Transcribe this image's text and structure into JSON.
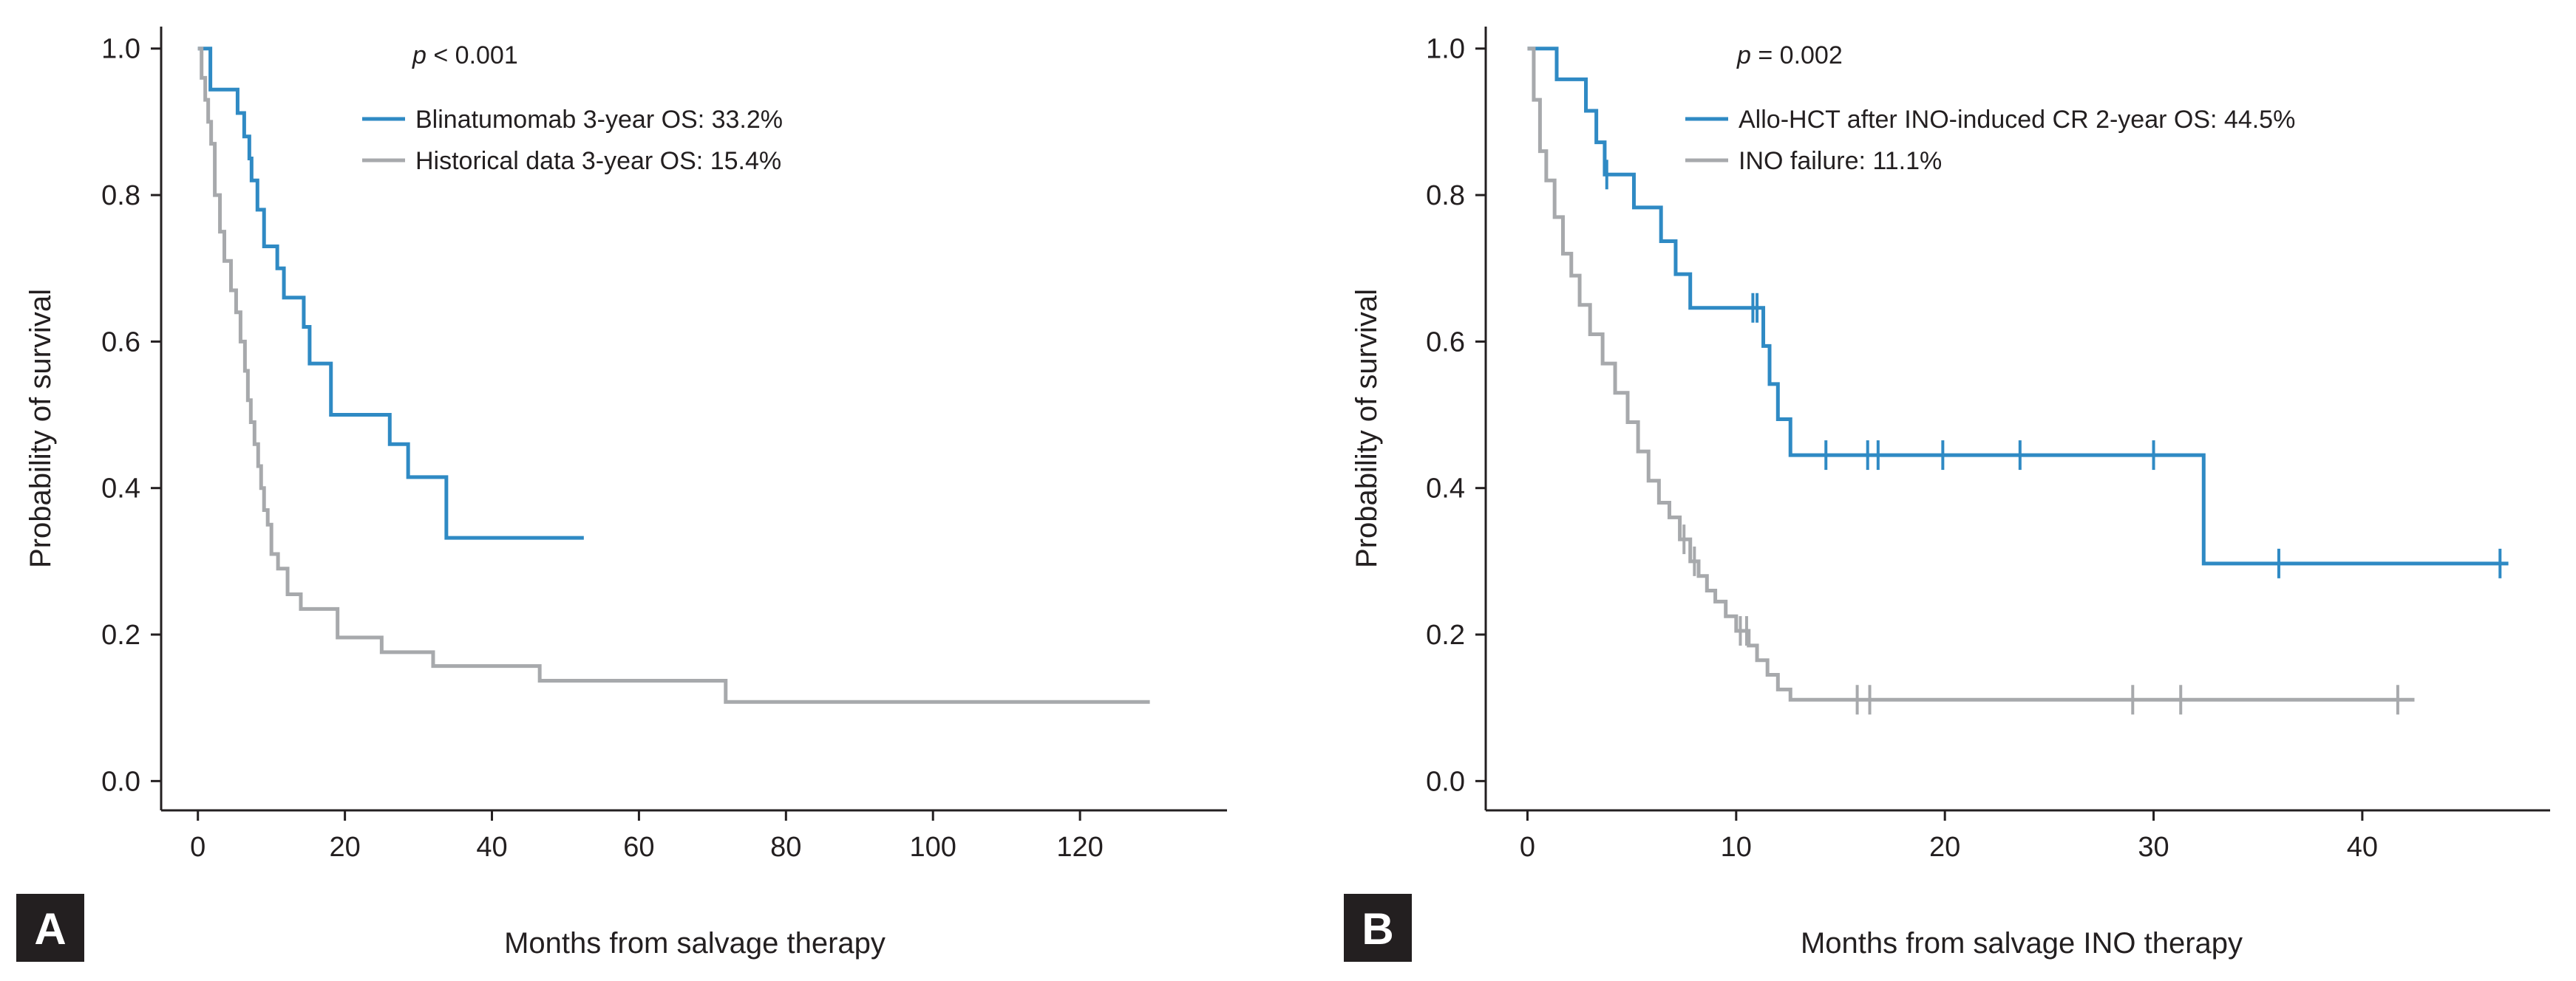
{
  "colors": {
    "blue": "#2f8ac4",
    "gray": "#a7a9ac",
    "axis": "#231f20",
    "badge": "#231f20"
  },
  "chart_data": [
    {
      "type": "line",
      "panel": "A",
      "step": true,
      "xlabel": "Months from salvage therapy",
      "ylabel": "Probability of survival",
      "xlim": [
        -5,
        140
      ],
      "ylim": [
        -0.04,
        1.03
      ],
      "xticks": [
        0,
        20,
        40,
        60,
        80,
        100,
        120
      ],
      "yticks": [
        0.0,
        0.2,
        0.4,
        0.6,
        0.8,
        1.0
      ],
      "ytick_labels": [
        "0.0",
        "0.2",
        "0.4",
        "0.6",
        "0.8",
        "1.0"
      ],
      "pvalue": {
        "symbol": "p",
        "text": " < 0.001"
      },
      "series": [
        {
          "name": "Blinatumomab 3-year OS: 33.2%",
          "color": "#2f8ac4",
          "x": [
            0,
            1.2,
            1.7,
            4.5,
            5.4,
            6.3,
            7.0,
            7.3,
            8.1,
            9.0,
            10.8,
            11.7,
            14.4,
            15.2,
            18.1,
            26.1,
            28.6,
            33.8,
            52.5
          ],
          "y": [
            1.0,
            1.0,
            0.944,
            0.944,
            0.912,
            0.88,
            0.85,
            0.82,
            0.78,
            0.73,
            0.7,
            0.66,
            0.62,
            0.57,
            0.5,
            0.46,
            0.415,
            0.332,
            0.332
          ],
          "censor_x": []
        },
        {
          "name": "Historical data 3-year OS: 15.4%",
          "color": "#a7a9ac",
          "x": [
            0,
            0.5,
            1.0,
            1.4,
            1.8,
            2.3,
            3.0,
            3.6,
            4.5,
            5.2,
            5.8,
            6.4,
            6.8,
            7.2,
            7.7,
            8.2,
            8.6,
            9.0,
            9.5,
            10.0,
            10.9,
            12.2,
            14.0,
            19.0,
            25.0,
            32.0,
            46.5,
            71.8,
            129.5
          ],
          "y": [
            1.0,
            0.96,
            0.93,
            0.9,
            0.87,
            0.8,
            0.75,
            0.71,
            0.67,
            0.64,
            0.6,
            0.56,
            0.52,
            0.49,
            0.46,
            0.43,
            0.4,
            0.37,
            0.35,
            0.31,
            0.29,
            0.255,
            0.235,
            0.196,
            0.176,
            0.157,
            0.137,
            0.108,
            0.108
          ],
          "censor_x": []
        }
      ]
    },
    {
      "type": "line",
      "panel": "B",
      "step": true,
      "xlabel": "Months from salvage INO therapy",
      "ylabel": "Probability of survival",
      "xlim": [
        -2,
        49
      ],
      "ylim": [
        -0.04,
        1.03
      ],
      "xticks": [
        0,
        10,
        20,
        30,
        40
      ],
      "yticks": [
        0.0,
        0.2,
        0.4,
        0.6,
        0.8,
        1.0
      ],
      "ytick_labels": [
        "0.0",
        "0.2",
        "0.4",
        "0.6",
        "0.8",
        "1.0"
      ],
      "pvalue": {
        "symbol": "p",
        "text": " = 0.002"
      },
      "series": [
        {
          "name": "Allo-HCT after INO-induced CR 2-year OS: 44.5%",
          "color": "#2f8ac4",
          "x": [
            0,
            1.4,
            2.8,
            3.3,
            3.7,
            5.1,
            6.4,
            7.1,
            7.8,
            10.8,
            11.3,
            11.6,
            12.0,
            12.6,
            32.4,
            47.0
          ],
          "y": [
            1.0,
            0.958,
            0.915,
            0.872,
            0.828,
            0.783,
            0.737,
            0.692,
            0.646,
            0.646,
            0.594,
            0.542,
            0.494,
            0.445,
            0.297,
            0.297
          ],
          "censor_x": [
            3.8,
            10.8,
            11.0,
            14.3,
            16.3,
            16.8,
            19.9,
            23.6,
            30.0,
            36.0,
            46.6
          ]
        },
        {
          "name": "INO failure: 11.1%",
          "color": "#a7a9ac",
          "x": [
            0,
            0.3,
            0.6,
            0.9,
            1.3,
            1.7,
            2.1,
            2.5,
            3.0,
            3.6,
            4.2,
            4.8,
            5.3,
            5.8,
            6.3,
            6.8,
            7.3,
            7.8,
            8.2,
            8.6,
            9.0,
            9.5,
            10.0,
            10.6,
            11.0,
            11.5,
            12.0,
            12.6,
            42.5
          ],
          "y": [
            1.0,
            0.93,
            0.86,
            0.82,
            0.77,
            0.72,
            0.69,
            0.65,
            0.61,
            0.57,
            0.53,
            0.49,
            0.45,
            0.41,
            0.38,
            0.36,
            0.33,
            0.3,
            0.28,
            0.26,
            0.245,
            0.225,
            0.205,
            0.185,
            0.165,
            0.145,
            0.125,
            0.111,
            0.111
          ],
          "censor_x": [
            7.5,
            8.0,
            10.2,
            10.5,
            15.8,
            16.4,
            29.0,
            31.3,
            41.7
          ]
        }
      ]
    }
  ]
}
